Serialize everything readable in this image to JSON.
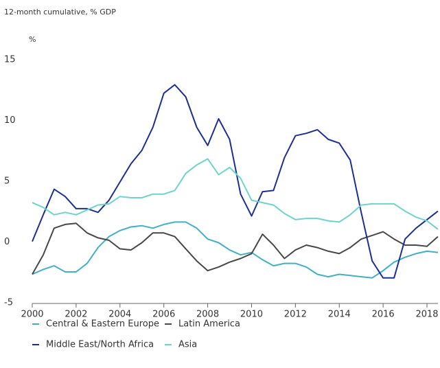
{
  "chart_data": {
    "type": "line",
    "subtitle": "12-month cumulative, % GDP",
    "y_label": "%",
    "x": [
      2000,
      2000.5,
      2001,
      2001.5,
      2002,
      2002.5,
      2003,
      2003.5,
      2004,
      2004.5,
      2005,
      2005.5,
      2006,
      2006.5,
      2007,
      2007.5,
      2008,
      2008.5,
      2009,
      2009.5,
      2010,
      2010.5,
      2011,
      2011.5,
      2012,
      2012.5,
      2013,
      2013.5,
      2014,
      2014.5,
      2015,
      2015.5,
      2016,
      2016.5,
      2017,
      2017.5,
      2018,
      2018.5
    ],
    "series": [
      {
        "name": "Central & Eastern Europe",
        "color": "#3fb0c8",
        "values": [
          -2.6,
          -2.2,
          -1.9,
          -2.4,
          -2.4,
          -1.7,
          -0.4,
          0.5,
          1.0,
          1.3,
          1.4,
          1.2,
          1.5,
          1.7,
          1.7,
          1.2,
          0.3,
          0.0,
          -0.6,
          -1.0,
          -0.8,
          -1.4,
          -1.9,
          -1.7,
          -1.7,
          -2.0,
          -2.6,
          -2.8,
          -2.6,
          -2.7,
          -2.8,
          -2.9,
          -2.3,
          -1.6,
          -1.2,
          -0.9,
          -0.7,
          -0.8
        ]
      },
      {
        "name": "Latin America",
        "color": "#474747",
        "values": [
          -2.6,
          -1.0,
          1.2,
          1.5,
          1.6,
          0.8,
          0.4,
          0.2,
          -0.5,
          -0.6,
          0.0,
          0.8,
          0.8,
          0.5,
          -0.5,
          -1.5,
          -2.3,
          -2.0,
          -1.6,
          -1.3,
          -0.9,
          0.7,
          -0.2,
          -1.3,
          -0.6,
          -0.2,
          -0.4,
          -0.7,
          -0.9,
          -0.4,
          0.3,
          0.6,
          0.9,
          0.3,
          -0.2,
          -0.2,
          -0.3,
          0.5
        ]
      },
      {
        "name": "Middle East/North Africa",
        "color": "#1a2f96",
        "values": [
          0.1,
          2.3,
          4.4,
          3.8,
          2.8,
          2.8,
          2.5,
          3.5,
          5.0,
          6.5,
          7.6,
          9.5,
          12.3,
          13.0,
          12.0,
          9.5,
          8.0,
          10.2,
          8.5,
          4.0,
          2.2,
          4.2,
          4.3,
          7.0,
          8.8,
          9.0,
          9.3,
          8.5,
          8.2,
          6.8,
          2.5,
          -1.5,
          -2.9,
          -2.9,
          0.3,
          1.2,
          1.9,
          2.6
        ]
      },
      {
        "name": "Asia",
        "color": "#6dd3cc",
        "values": [
          3.3,
          2.9,
          2.3,
          2.5,
          2.3,
          2.7,
          3.1,
          3.2,
          3.8,
          3.7,
          3.7,
          4.0,
          4.0,
          4.3,
          5.7,
          6.4,
          6.9,
          5.6,
          6.2,
          5.3,
          3.5,
          3.3,
          3.1,
          2.4,
          1.9,
          2.0,
          2.0,
          1.8,
          1.7,
          2.3,
          3.1,
          3.2,
          3.2,
          3.2,
          2.6,
          2.1,
          1.8,
          1.1
        ]
      }
    ],
    "xlim": [
      2000,
      2018.5
    ],
    "xticks": [
      2000,
      2002,
      2004,
      2006,
      2008,
      2010,
      2012,
      2014,
      2016,
      2018
    ],
    "ylim": [
      -5,
      15
    ],
    "yticks": [
      -5,
      0,
      5,
      10,
      15
    ],
    "grid": false,
    "legend": "bottom"
  }
}
